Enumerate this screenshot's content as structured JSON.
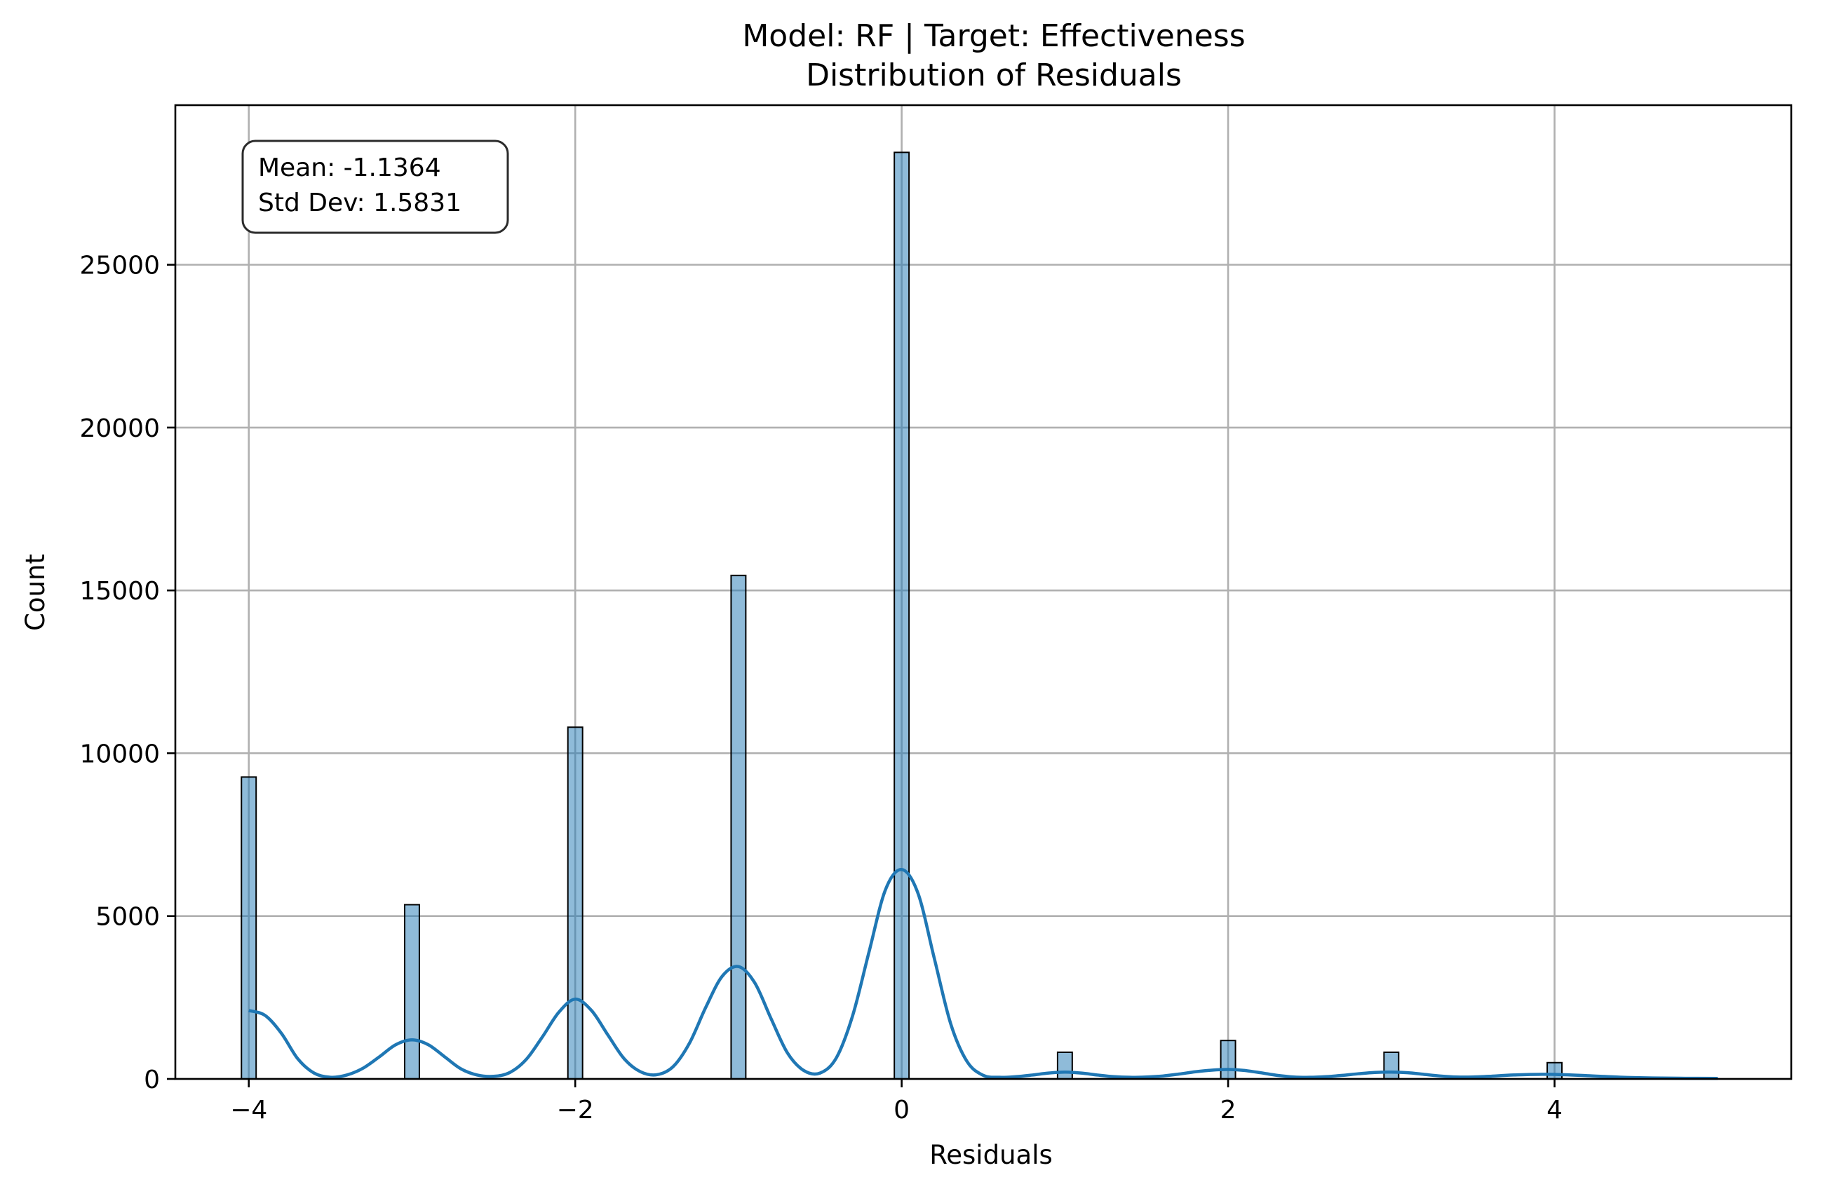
{
  "chart_data": {
    "type": "bar",
    "title": "Model: RF | Target: Effectiveness",
    "subtitle": "Distribution of Residuals",
    "xlabel": "Residuals",
    "ylabel": "Count",
    "xlim": [
      -4.45,
      5.45
    ],
    "ylim": [
      0,
      29900
    ],
    "xticks": [
      -4,
      -2,
      0,
      2,
      4
    ],
    "xtick_labels": [
      "−4",
      "−2",
      "0",
      "2",
      "4"
    ],
    "yticks": [
      0,
      5000,
      10000,
      15000,
      20000,
      25000
    ],
    "ytick_labels": [
      "0",
      "5000",
      "10000",
      "15000",
      "20000",
      "25000"
    ],
    "grid": true,
    "bin_width": 0.09,
    "bins": [
      {
        "x": -4,
        "count": 9270
      },
      {
        "x": -3,
        "count": 5350
      },
      {
        "x": -2,
        "count": 10800
      },
      {
        "x": -1,
        "count": 15460
      },
      {
        "x": 0,
        "count": 28450
      },
      {
        "x": 1,
        "count": 820
      },
      {
        "x": 2,
        "count": 1180
      },
      {
        "x": 3,
        "count": 820
      },
      {
        "x": 4,
        "count": 500
      }
    ],
    "kde": [
      {
        "x": -4.0,
        "y": 2100
      },
      {
        "x": -3.9,
        "y": 1950
      },
      {
        "x": -3.8,
        "y": 1400
      },
      {
        "x": -3.7,
        "y": 620
      },
      {
        "x": -3.6,
        "y": 180
      },
      {
        "x": -3.5,
        "y": 50
      },
      {
        "x": -3.4,
        "y": 120
      },
      {
        "x": -3.3,
        "y": 330
      },
      {
        "x": -3.2,
        "y": 680
      },
      {
        "x": -3.1,
        "y": 1050
      },
      {
        "x": -3.0,
        "y": 1200
      },
      {
        "x": -2.9,
        "y": 1050
      },
      {
        "x": -2.8,
        "y": 680
      },
      {
        "x": -2.7,
        "y": 310
      },
      {
        "x": -2.6,
        "y": 120
      },
      {
        "x": -2.5,
        "y": 80
      },
      {
        "x": -2.4,
        "y": 200
      },
      {
        "x": -2.3,
        "y": 600
      },
      {
        "x": -2.2,
        "y": 1300
      },
      {
        "x": -2.1,
        "y": 2050
      },
      {
        "x": -2.0,
        "y": 2450
      },
      {
        "x": -1.9,
        "y": 2100
      },
      {
        "x": -1.8,
        "y": 1350
      },
      {
        "x": -1.7,
        "y": 620
      },
      {
        "x": -1.6,
        "y": 220
      },
      {
        "x": -1.5,
        "y": 130
      },
      {
        "x": -1.4,
        "y": 380
      },
      {
        "x": -1.3,
        "y": 1100
      },
      {
        "x": -1.2,
        "y": 2200
      },
      {
        "x": -1.1,
        "y": 3150
      },
      {
        "x": -1.0,
        "y": 3450
      },
      {
        "x": -0.9,
        "y": 2950
      },
      {
        "x": -0.8,
        "y": 1850
      },
      {
        "x": -0.7,
        "y": 800
      },
      {
        "x": -0.6,
        "y": 260
      },
      {
        "x": -0.5,
        "y": 180
      },
      {
        "x": -0.4,
        "y": 650
      },
      {
        "x": -0.3,
        "y": 1950
      },
      {
        "x": -0.2,
        "y": 3900
      },
      {
        "x": -0.1,
        "y": 5800
      },
      {
        "x": 0.0,
        "y": 6430
      },
      {
        "x": 0.1,
        "y": 5700
      },
      {
        "x": 0.2,
        "y": 3700
      },
      {
        "x": 0.3,
        "y": 1700
      },
      {
        "x": 0.4,
        "y": 540
      },
      {
        "x": 0.5,
        "y": 110
      },
      {
        "x": 0.6,
        "y": 50
      },
      {
        "x": 0.7,
        "y": 70
      },
      {
        "x": 0.8,
        "y": 120
      },
      {
        "x": 0.9,
        "y": 180
      },
      {
        "x": 1.0,
        "y": 210
      },
      {
        "x": 1.1,
        "y": 180
      },
      {
        "x": 1.2,
        "y": 120
      },
      {
        "x": 1.3,
        "y": 70
      },
      {
        "x": 1.4,
        "y": 50
      },
      {
        "x": 1.5,
        "y": 60
      },
      {
        "x": 1.6,
        "y": 90
      },
      {
        "x": 1.7,
        "y": 150
      },
      {
        "x": 1.8,
        "y": 220
      },
      {
        "x": 1.9,
        "y": 270
      },
      {
        "x": 2.0,
        "y": 290
      },
      {
        "x": 2.1,
        "y": 260
      },
      {
        "x": 2.2,
        "y": 190
      },
      {
        "x": 2.3,
        "y": 110
      },
      {
        "x": 2.4,
        "y": 60
      },
      {
        "x": 2.5,
        "y": 50
      },
      {
        "x": 2.6,
        "y": 70
      },
      {
        "x": 2.7,
        "y": 110
      },
      {
        "x": 2.8,
        "y": 160
      },
      {
        "x": 2.9,
        "y": 200
      },
      {
        "x": 3.0,
        "y": 210
      },
      {
        "x": 3.1,
        "y": 190
      },
      {
        "x": 3.2,
        "y": 140
      },
      {
        "x": 3.3,
        "y": 90
      },
      {
        "x": 3.4,
        "y": 60
      },
      {
        "x": 3.5,
        "y": 60
      },
      {
        "x": 3.6,
        "y": 80
      },
      {
        "x": 3.7,
        "y": 110
      },
      {
        "x": 3.8,
        "y": 130
      },
      {
        "x": 3.9,
        "y": 140
      },
      {
        "x": 4.0,
        "y": 140
      },
      {
        "x": 4.2,
        "y": 100
      },
      {
        "x": 4.4,
        "y": 55
      },
      {
        "x": 4.6,
        "y": 30
      },
      {
        "x": 4.8,
        "y": 20
      },
      {
        "x": 5.0,
        "y": 15
      }
    ],
    "annotations": [
      "Mean: -1.1364",
      "Std Dev: 1.5831"
    ],
    "annotation_placement": "top-left",
    "colors": {
      "bar": "#1f77b4",
      "kde": "#1f77b4",
      "grid": "#b0b0b0"
    }
  },
  "stats": {
    "mean": "Mean: -1.1364",
    "std": "Std Dev: 1.5831"
  }
}
